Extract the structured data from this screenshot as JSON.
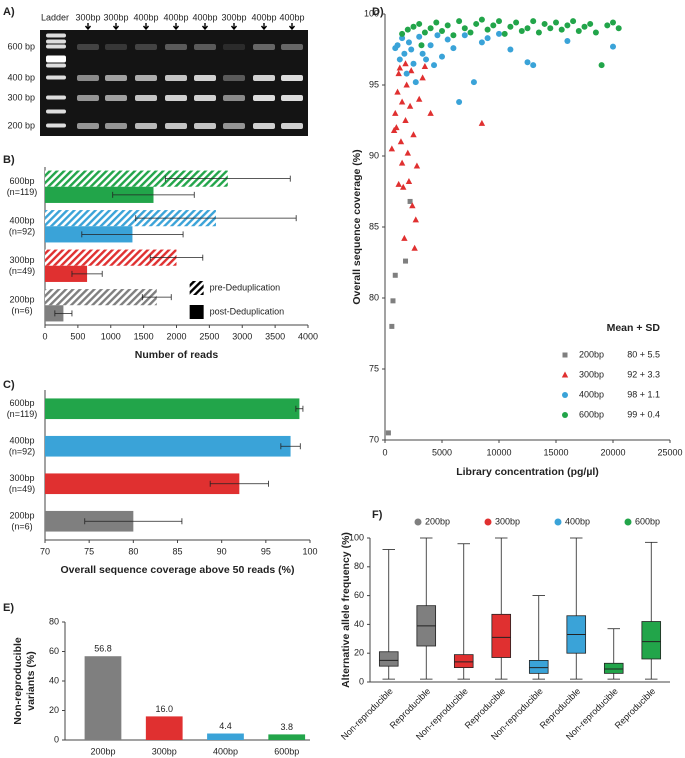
{
  "gel": {
    "panel": "A)",
    "lanes": [
      "Ladder",
      "300bp",
      "300bp",
      "400bp",
      "400bp",
      "400bp",
      "300bp",
      "400bp",
      "400bp"
    ],
    "sizes": [
      "600 bp",
      "400 bp",
      "300 bp",
      "200 bp"
    ]
  },
  "chart_data": [
    {
      "type": "bar",
      "orientation": "horizontal",
      "panel": "B)",
      "xlabel": "Number of reads",
      "categories": [
        [
          "600bp",
          "(n=119)"
        ],
        [
          "400bp",
          "(n=92)"
        ],
        [
          "300bp",
          "(n=49)"
        ],
        [
          "200bp",
          "(n=6)"
        ]
      ],
      "colors": [
        "#22a54a",
        "#3aa3d8",
        "#e03030",
        "#7f7f7f"
      ],
      "series": [
        {
          "name": "pre-Deduplication",
          "color": "#000000",
          "hatch": true,
          "values": [
            2780,
            2600,
            2000,
            1700
          ],
          "errors": [
            950,
            1220,
            400,
            220
          ]
        },
        {
          "name": "post-Deduplication",
          "color": "#000000",
          "hatch": false,
          "values": [
            1650,
            1330,
            640,
            280
          ],
          "errors": [
            620,
            770,
            230,
            130
          ]
        }
      ],
      "xlim": [
        0,
        4000
      ],
      "xticks": [
        0,
        500,
        1000,
        1500,
        2000,
        2500,
        3000,
        3500,
        4000
      ],
      "legend": "lower right"
    },
    {
      "type": "bar",
      "orientation": "horizontal",
      "panel": "C)",
      "xlabel": "Overall sequence coverage above 50 reads (%)",
      "categories": [
        [
          "600bp",
          "(n=119)"
        ],
        [
          "400bp",
          "(n=92)"
        ],
        [
          "300bp",
          "(n=49)"
        ],
        [
          "200bp",
          "(n=6)"
        ]
      ],
      "colors": [
        "#22a54a",
        "#3aa3d8",
        "#e03030",
        "#7f7f7f"
      ],
      "series": [
        {
          "hatch": false,
          "values": [
            98.8,
            97.8,
            92,
            80
          ],
          "errors": [
            0.4,
            1.1,
            3.3,
            5.5
          ]
        }
      ],
      "xlim": [
        70,
        100
      ],
      "xticks": [
        70,
        75,
        80,
        85,
        90,
        95,
        100
      ]
    },
    {
      "type": "scatter",
      "panel": "D)",
      "xlabel": "Library concentration (pg/µl)",
      "ylabel": "Overall  sequence  coverage (%)",
      "legend_title": "Mean + SD",
      "legend": "lower right",
      "xlim": [
        0,
        25000
      ],
      "xticks": [
        0,
        5000,
        10000,
        15000,
        20000,
        25000
      ],
      "ylim": [
        70,
        100
      ],
      "yticks": [
        70,
        75,
        80,
        85,
        90,
        95,
        100
      ],
      "series": [
        {
          "name": "200bp",
          "stat": "80 + 5.5",
          "color": "#7f7f7f",
          "marker": "square",
          "x": [
            300,
            600,
            700,
            900,
            1800,
            2200
          ],
          "values": [
            70.5,
            78,
            79.8,
            81.6,
            82.6,
            86.8
          ]
        },
        {
          "name": "300bp",
          "stat": "92 + 3.3",
          "color": "#e03030",
          "marker": "triangle",
          "x": [
            600,
            800,
            900,
            1000,
            1100,
            1200,
            1300,
            1400,
            1500,
            1500,
            1600,
            1700,
            1800,
            1900,
            2000,
            2100,
            2200,
            2300,
            2400,
            2500,
            2600,
            2700,
            2800,
            3000,
            3300,
            3500,
            4000,
            8500,
            1200,
            1800
          ],
          "values": [
            90.5,
            91.8,
            93,
            92,
            94.5,
            95.8,
            96.2,
            91,
            89.5,
            93.8,
            87.8,
            84.2,
            92.5,
            95,
            90.2,
            88.2,
            93.5,
            96,
            86.5,
            91.5,
            83.5,
            85.5,
            89.3,
            94,
            95.5,
            96.3,
            93,
            92.3,
            88,
            96.5
          ]
        },
        {
          "name": "400bp",
          "stat": "98 + 1.1",
          "color": "#3aa3d8",
          "marker": "circle",
          "x": [
            900,
            1100,
            1300,
            1500,
            1700,
            1900,
            2100,
            2300,
            2500,
            2700,
            3000,
            3300,
            3600,
            4000,
            4300,
            4600,
            5000,
            5500,
            6000,
            6500,
            7000,
            7800,
            8500,
            9000,
            10000,
            11000,
            12500,
            13000,
            16000,
            20000
          ],
          "values": [
            97.6,
            97.8,
            96.8,
            98.3,
            97.2,
            95.8,
            98,
            97.5,
            96.5,
            95.2,
            98.4,
            97.2,
            96.8,
            97.8,
            96.4,
            98.5,
            97,
            98.2,
            97.6,
            93.8,
            98.5,
            95.2,
            98,
            98.3,
            98.6,
            97.5,
            96.6,
            96.4,
            98.1,
            97.7
          ]
        },
        {
          "name": "600bp",
          "stat": "99 + 0.4",
          "color": "#22a54a",
          "marker": "circle",
          "x": [
            1500,
            2000,
            2500,
            3000,
            3500,
            4000,
            4500,
            5000,
            5500,
            6000,
            6500,
            7000,
            7500,
            8000,
            8500,
            9000,
            9500,
            10000,
            10500,
            11000,
            11500,
            12000,
            12500,
            13000,
            13500,
            14000,
            14500,
            15000,
            15500,
            16000,
            16500,
            17000,
            17500,
            18000,
            18500,
            19000,
            19500,
            20000,
            20500,
            3200
          ],
          "values": [
            98.6,
            98.9,
            99.1,
            99.3,
            98.7,
            99,
            99.4,
            98.8,
            99.2,
            98.5,
            99.5,
            99,
            98.7,
            99.3,
            99.6,
            98.9,
            99.2,
            99.5,
            98.6,
            99.1,
            99.4,
            98.8,
            99,
            99.5,
            98.7,
            99.3,
            99,
            99.4,
            98.9,
            99.2,
            99.5,
            98.8,
            99.1,
            99.3,
            98.7,
            96.4,
            99.2,
            99.4,
            99,
            97.8
          ]
        }
      ]
    },
    {
      "type": "bar",
      "orientation": "vertical",
      "panel": "E)",
      "ylabel": [
        "Non-reproducible",
        "variants (%)"
      ],
      "categories": [
        "200bp",
        "300bp",
        "400bp",
        "600bp"
      ],
      "colors": [
        "#7f7f7f",
        "#e03030",
        "#3aa3d8",
        "#22a54a"
      ],
      "values": [
        56.8,
        16.0,
        4.4,
        3.8
      ],
      "value_labels": [
        "56.8",
        "16.0",
        "4.4",
        "3.8"
      ],
      "ylim": [
        0,
        80
      ],
      "yticks": [
        0,
        20,
        40,
        60,
        80
      ]
    },
    {
      "type": "box",
      "panel": "F)",
      "ylabel": "Alternative allele frequency (%)",
      "legend": [
        {
          "name": "200bp",
          "color": "#7f7f7f"
        },
        {
          "name": "300bp",
          "color": "#e03030"
        },
        {
          "name": "400bp",
          "color": "#3aa3d8"
        },
        {
          "name": "600bp",
          "color": "#22a54a"
        }
      ],
      "categories": [
        "Non-reproducible",
        "Reproducible",
        "Non-reproducible",
        "Reproducible",
        "Non-reproducible",
        "Reproducible",
        "Non-reproducible",
        "Reproducible"
      ],
      "colors": [
        "#7f7f7f",
        "#7f7f7f",
        "#e03030",
        "#e03030",
        "#3aa3d8",
        "#3aa3d8",
        "#22a54a",
        "#22a54a"
      ],
      "min": [
        2,
        2,
        2,
        2,
        2,
        2,
        2,
        2
      ],
      "q1": [
        11,
        25,
        10,
        17,
        6,
        20,
        6,
        16
      ],
      "median": [
        15,
        39,
        14,
        31,
        10,
        33,
        9,
        28
      ],
      "q3": [
        21,
        53,
        19,
        47,
        15,
        46,
        13,
        42
      ],
      "max": [
        92,
        100,
        96,
        100,
        60,
        100,
        37,
        97
      ],
      "ylim": [
        0,
        100
      ],
      "yticks": [
        0,
        20,
        40,
        60,
        80,
        100
      ]
    }
  ]
}
